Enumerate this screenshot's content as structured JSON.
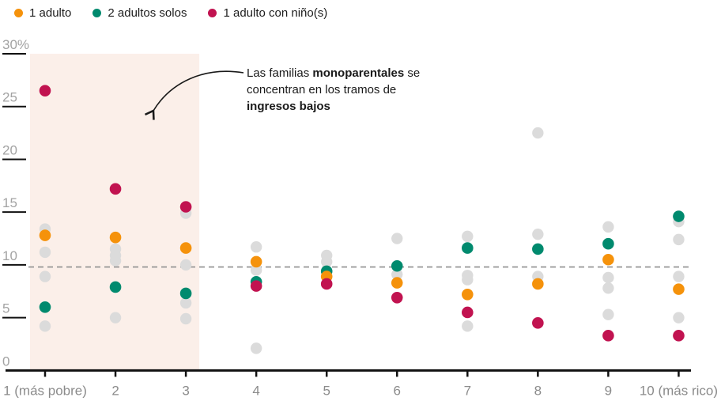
{
  "legend": {
    "items": [
      {
        "label": "1 adulto",
        "color": "#F5920B"
      },
      {
        "label": "2 adultos solos",
        "color": "#008A6E"
      },
      {
        "label": "1 adulto con niño(s)",
        "color": "#C11350"
      }
    ]
  },
  "annotation": {
    "parts": [
      {
        "text": "Las familias ",
        "bold": false
      },
      {
        "text": "monoparentales",
        "bold": true
      },
      {
        "text": " se concentran en los tramos de ",
        "bold": false
      },
      {
        "text": "ingresos bajos",
        "bold": true
      }
    ]
  },
  "chart_data": {
    "type": "scatter",
    "title": "",
    "xlabel": "",
    "ylabel": "",
    "categories": [
      "1 (más pobre)",
      "2",
      "3",
      "4",
      "5",
      "6",
      "7",
      "8",
      "9",
      "10 (más rico)"
    ],
    "y_ticks": [
      0,
      5,
      10,
      15,
      20,
      25,
      30
    ],
    "y_tick_labels": [
      "0",
      "5",
      "10",
      "15",
      "20",
      "25",
      "30%"
    ],
    "ylim": [
      0,
      30
    ],
    "grid": false,
    "legend_position": "top-left",
    "reference_line_value": 9.8,
    "highlight_band": {
      "from_category": "1 (más pobre)",
      "to_category": "3",
      "color": "#FBEFE9"
    },
    "series": [
      {
        "name": "1 adulto",
        "color": "#F5920B",
        "values": [
          12.8,
          12.6,
          11.6,
          10.3,
          8.9,
          8.3,
          7.2,
          8.2,
          10.5,
          7.7
        ]
      },
      {
        "name": "2 adultos solos",
        "color": "#008A6E",
        "values": [
          6.0,
          7.9,
          7.3,
          8.4,
          9.4,
          9.9,
          11.6,
          11.5,
          12.0,
          14.6
        ]
      },
      {
        "name": "1 adulto con niño(s)",
        "color": "#C11350",
        "values": [
          26.5,
          17.2,
          15.5,
          8.0,
          8.2,
          6.9,
          5.5,
          4.5,
          3.3,
          3.3
        ]
      }
    ],
    "background_points": {
      "color": "#DBDBDB",
      "values_by_category": [
        [
          13.4,
          11.2,
          8.9,
          4.2
        ],
        [
          11.5,
          10.9,
          10.4,
          5.0
        ],
        [
          14.9,
          10.0,
          6.4,
          4.9
        ],
        [
          11.7,
          9.5,
          2.1
        ],
        [
          10.9,
          10.3
        ],
        [
          12.5,
          9.1
        ],
        [
          12.7,
          9.0,
          8.6,
          4.2
        ],
        [
          22.5,
          12.9,
          8.9
        ],
        [
          13.6,
          8.8,
          7.8,
          5.3
        ],
        [
          14.1,
          12.4,
          8.9,
          5.0
        ]
      ]
    },
    "colors": {
      "axis": "#111111",
      "reference_line": "#8f8f8f",
      "y_tick_label": "#a3a3a3",
      "x_tick_label": "#8b8b8b",
      "annotation_arrow": "#1a1a1a"
    }
  }
}
